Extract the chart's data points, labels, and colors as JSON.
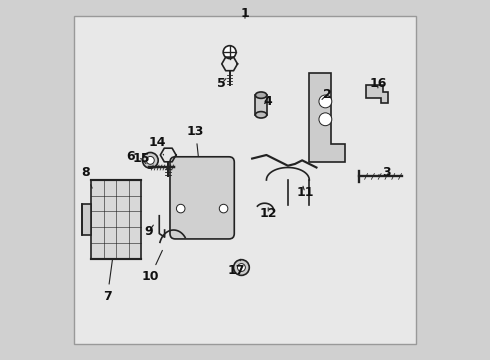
{
  "bg_color": "#e8e8e8",
  "border_color": "#999999",
  "line_color": "#222222",
  "label_color": "#111111",
  "fig_bg": "#d0d0d0",
  "label_positions": {
    "1": [
      0.5,
      0.965,
      0.5,
      0.945
    ],
    "2": [
      0.73,
      0.74,
      0.71,
      0.72
    ],
    "3": [
      0.895,
      0.52,
      0.875,
      0.515
    ],
    "4": [
      0.565,
      0.72,
      0.548,
      0.71
    ],
    "5": [
      0.435,
      0.77,
      0.452,
      0.79
    ],
    "6": [
      0.18,
      0.565,
      0.215,
      0.558
    ],
    "7": [
      0.115,
      0.175,
      0.13,
      0.285
    ],
    "8": [
      0.055,
      0.52,
      0.075,
      0.47
    ],
    "9": [
      0.23,
      0.355,
      0.248,
      0.38
    ],
    "10": [
      0.235,
      0.23,
      0.272,
      0.31
    ],
    "11": [
      0.668,
      0.465,
      0.66,
      0.49
    ],
    "12": [
      0.565,
      0.405,
      0.565,
      0.43
    ],
    "13": [
      0.362,
      0.635,
      0.37,
      0.56
    ],
    "14": [
      0.255,
      0.605,
      0.272,
      0.57
    ],
    "15": [
      0.21,
      0.56,
      0.228,
      0.54
    ],
    "16": [
      0.872,
      0.77,
      0.872,
      0.75
    ],
    "17": [
      0.477,
      0.248,
      0.488,
      0.278
    ]
  }
}
